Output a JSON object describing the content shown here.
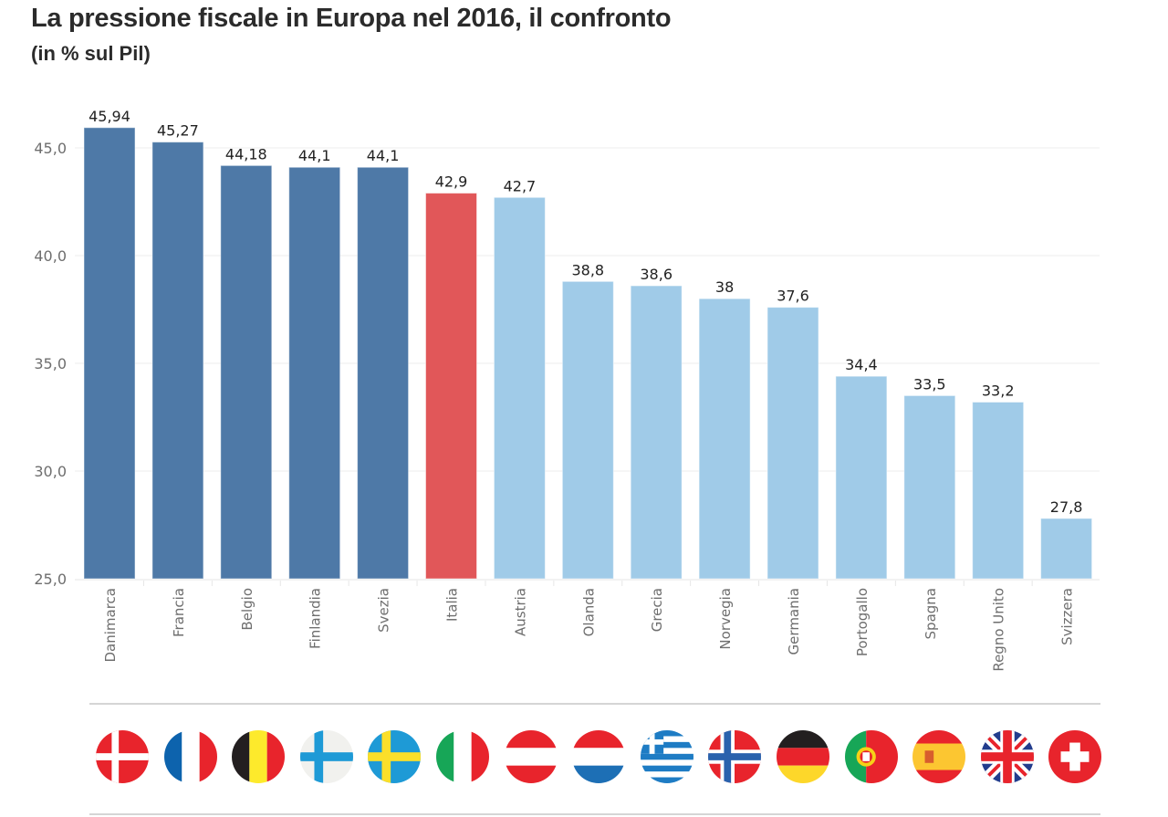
{
  "header": {
    "title": "La pressione fiscale in Europa nel 2016, il confronto",
    "subtitle": "(in % sul Pil)"
  },
  "chart_data": {
    "type": "bar",
    "title": "La pressione fiscale in Europa nel 2016, il confronto",
    "subtitle": "(in % sul Pil)",
    "xlabel": "",
    "ylabel": "",
    "ylim": [
      25,
      46.5
    ],
    "yticks": [
      25,
      30,
      35,
      40,
      45
    ],
    "ytick_labels": [
      "25,0",
      "30,0",
      "35,0",
      "40,0",
      "45,0"
    ],
    "grid": true,
    "categories": [
      "Danimarca",
      "Francia",
      "Belgio",
      "Finlandia",
      "Svezia",
      "Italia",
      "Austria",
      "Olanda",
      "Grecia",
      "Norvegia",
      "Germania",
      "Portogallo",
      "Spagna",
      "Regno Unito",
      "Svizzera"
    ],
    "values": [
      45.94,
      45.27,
      44.18,
      44.1,
      44.1,
      42.9,
      42.7,
      38.8,
      38.6,
      38,
      37.6,
      34.4,
      33.5,
      33.2,
      27.8
    ],
    "value_labels": [
      "45,94",
      "45,27",
      "44,18",
      "44,1",
      "44,1",
      "42,9",
      "42,7",
      "38,8",
      "38,6",
      "38",
      "37,6",
      "34,4",
      "33,5",
      "33,2",
      "27,8"
    ],
    "groups": [
      "high",
      "high",
      "high",
      "high",
      "high",
      "italy",
      "low",
      "low",
      "low",
      "low",
      "low",
      "low",
      "low",
      "low",
      "low"
    ],
    "colors": {
      "high": "#4e79a7",
      "italy": "#e15759",
      "low": "#a0cbe8"
    }
  },
  "flags": [
    {
      "country": "Danimarca",
      "icon": "denmark-flag-icon"
    },
    {
      "country": "Francia",
      "icon": "france-flag-icon"
    },
    {
      "country": "Belgio",
      "icon": "belgium-flag-icon"
    },
    {
      "country": "Finlandia",
      "icon": "finland-flag-icon"
    },
    {
      "country": "Svezia",
      "icon": "sweden-flag-icon"
    },
    {
      "country": "Italia",
      "icon": "italy-flag-icon"
    },
    {
      "country": "Austria",
      "icon": "austria-flag-icon"
    },
    {
      "country": "Olanda",
      "icon": "netherlands-flag-icon"
    },
    {
      "country": "Grecia",
      "icon": "greece-flag-icon"
    },
    {
      "country": "Norvegia",
      "icon": "norway-flag-icon"
    },
    {
      "country": "Germania",
      "icon": "germany-flag-icon"
    },
    {
      "country": "Portogallo",
      "icon": "portugal-flag-icon"
    },
    {
      "country": "Spagna",
      "icon": "spain-flag-icon"
    },
    {
      "country": "Regno Unito",
      "icon": "uk-flag-icon"
    },
    {
      "country": "Svizzera",
      "icon": "switzerland-flag-icon"
    }
  ]
}
